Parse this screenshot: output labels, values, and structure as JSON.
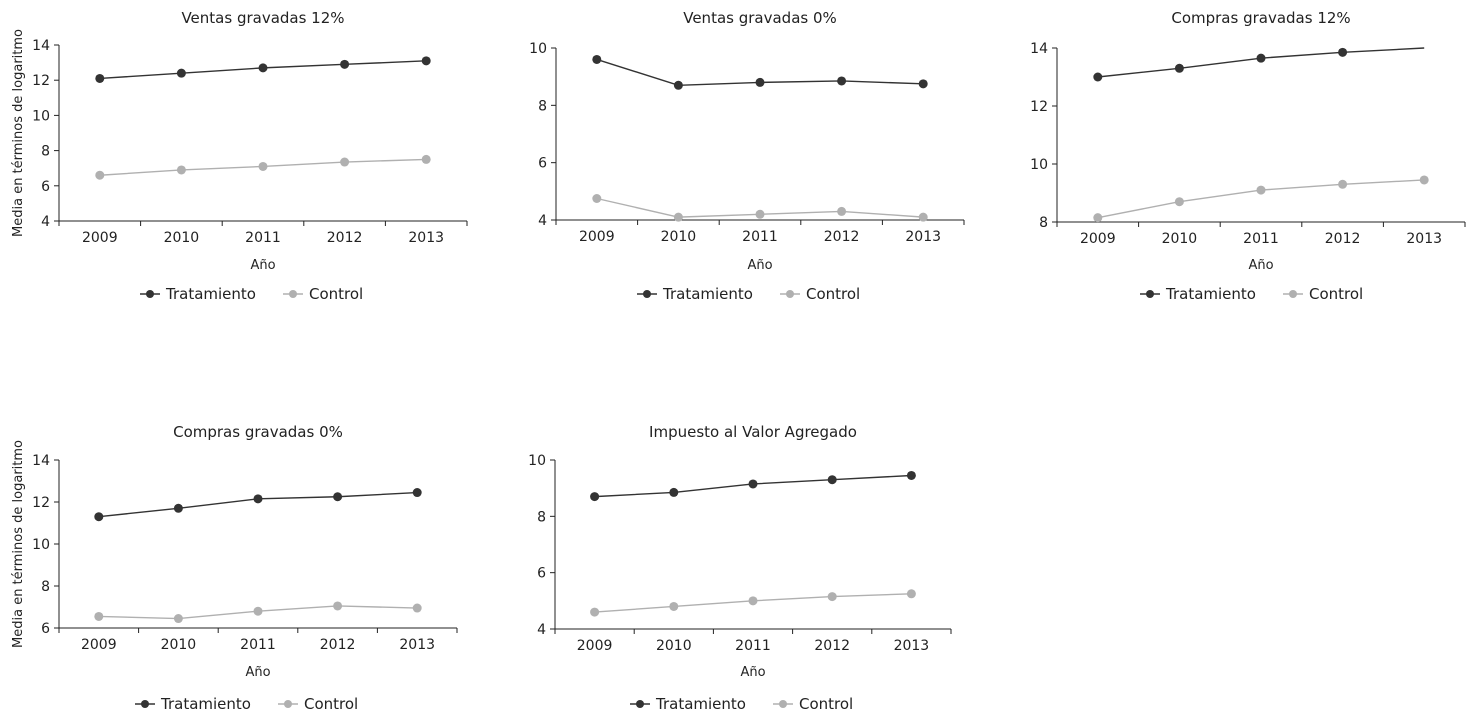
{
  "chart_data": [
    {
      "type": "line",
      "title": "Ventas gravadas 12%",
      "xlabel": "Año",
      "ylabel": "Media en términos de logaritmo",
      "categories": [
        "2009",
        "2010",
        "2011",
        "2012",
        "2013"
      ],
      "ylim": [
        4,
        14
      ],
      "yticks": [
        4,
        6,
        8,
        10,
        12,
        14
      ],
      "series": [
        {
          "name": "Tratamiento",
          "color": "#333333",
          "values": [
            12.1,
            12.4,
            12.7,
            12.9,
            13.1
          ]
        },
        {
          "name": "Control",
          "color": "#b0b0b0",
          "values": [
            6.6,
            6.9,
            7.1,
            7.35,
            7.5
          ]
        }
      ],
      "legend": "bottom"
    },
    {
      "type": "line",
      "title": "Ventas gravadas 0%",
      "xlabel": "Año",
      "ylabel": "",
      "categories": [
        "2009",
        "2010",
        "2011",
        "2012",
        "2013"
      ],
      "ylim": [
        4,
        10
      ],
      "yticks": [
        4,
        6,
        8,
        10
      ],
      "series": [
        {
          "name": "Tratamiento",
          "color": "#333333",
          "values": [
            9.6,
            8.7,
            8.8,
            8.85,
            8.75
          ]
        },
        {
          "name": "Control",
          "color": "#b0b0b0",
          "values": [
            4.75,
            4.1,
            4.2,
            4.3,
            4.1
          ]
        }
      ],
      "legend": "bottom"
    },
    {
      "type": "line",
      "title": "Compras gravadas 12%",
      "xlabel": "Año",
      "ylabel": "",
      "categories": [
        "2009",
        "2010",
        "2011",
        "2012",
        "2013"
      ],
      "ylim": [
        8,
        14
      ],
      "yticks": [
        8,
        10,
        12,
        14
      ],
      "series": [
        {
          "name": "Tratamiento",
          "color": "#333333",
          "values": [
            13.0,
            13.3,
            13.65,
            13.85,
            14.0
          ]
        },
        {
          "name": "Control",
          "color": "#b0b0b0",
          "values": [
            8.15,
            8.7,
            9.1,
            9.3,
            9.45
          ]
        }
      ],
      "legend": "bottom"
    },
    {
      "type": "line",
      "title": "Compras gravadas 0%",
      "xlabel": "Año",
      "ylabel": "Media en términos de logaritmo",
      "categories": [
        "2009",
        "2010",
        "2011",
        "2012",
        "2013"
      ],
      "ylim": [
        6,
        14
      ],
      "yticks": [
        6,
        8,
        10,
        12,
        14
      ],
      "series": [
        {
          "name": "Tratamiento",
          "color": "#333333",
          "values": [
            11.3,
            11.7,
            12.15,
            12.25,
            12.45
          ]
        },
        {
          "name": "Control",
          "color": "#b0b0b0",
          "values": [
            6.55,
            6.45,
            6.8,
            7.05,
            6.95
          ]
        }
      ],
      "legend": "bottom"
    },
    {
      "type": "line",
      "title": "Impuesto al Valor Agregado",
      "xlabel": "Año",
      "ylabel": "",
      "categories": [
        "2009",
        "2010",
        "2011",
        "2012",
        "2013"
      ],
      "ylim": [
        4,
        10
      ],
      "yticks": [
        4,
        6,
        8,
        10
      ],
      "series": [
        {
          "name": "Tratamiento",
          "color": "#333333",
          "values": [
            8.7,
            8.85,
            9.15,
            9.3,
            9.45
          ]
        },
        {
          "name": "Control",
          "color": "#b0b0b0",
          "values": [
            4.6,
            4.8,
            5.0,
            5.15,
            5.25
          ]
        }
      ],
      "legend": "bottom"
    }
  ]
}
